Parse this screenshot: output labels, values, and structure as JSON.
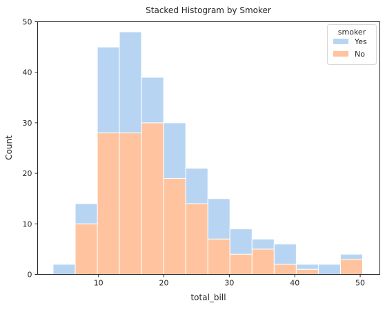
{
  "chart_data": {
    "type": "bar",
    "title": "Stacked Histogram by Smoker",
    "xlabel": "total_bill",
    "ylabel": "Count",
    "xlim": [
      0.7,
      53.0
    ],
    "ylim": [
      0,
      50
    ],
    "xticks": [
      10,
      20,
      30,
      40,
      50
    ],
    "yticks": [
      0,
      10,
      20,
      30,
      40,
      50
    ],
    "grid": false,
    "legend": {
      "title": "smoker",
      "placement": "top-right"
    },
    "bin_edges": [
      3.07,
      6.45,
      9.83,
      13.2,
      16.58,
      19.96,
      23.34,
      26.72,
      30.09,
      33.47,
      36.85,
      40.23,
      43.61,
      46.98,
      50.36
    ],
    "series": [
      {
        "name": "No",
        "color": "#ffc49f",
        "values": [
          0,
          10,
          28,
          28,
          30,
          19,
          14,
          7,
          4,
          5,
          2,
          1,
          0,
          3
        ]
      },
      {
        "name": "Yes",
        "color": "#b7d5f3",
        "values": [
          2,
          4,
          17,
          20,
          9,
          11,
          7,
          8,
          5,
          2,
          4,
          1,
          2,
          1
        ]
      }
    ]
  }
}
